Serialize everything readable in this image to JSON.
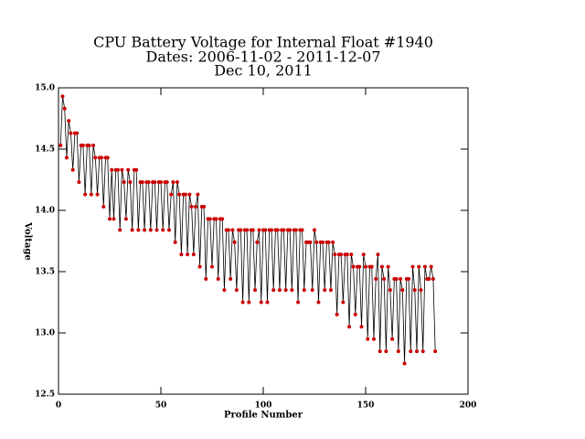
{
  "chart_data": {
    "type": "line",
    "title": [
      "CPU Battery Voltage for Internal Float #1940",
      "Dates:  2006-11-02 -  2011-12-07",
      "Dec 10, 2011"
    ],
    "xlabel": "Profile Number",
    "ylabel": "Voltage",
    "xlim": [
      0,
      200
    ],
    "xticks": [
      0,
      50,
      100,
      150,
      200
    ],
    "ylim": [
      12.5,
      15.0
    ],
    "yticks": [
      {
        "value": 12.5,
        "label": "12.5"
      },
      {
        "value": 13.0,
        "label": "13.0"
      },
      {
        "value": 13.5,
        "label": "13.5"
      },
      {
        "value": 14.0,
        "label": "14.0"
      },
      {
        "value": 14.5,
        "label": "14.5"
      },
      {
        "value": 15.0,
        "label": "15.0"
      }
    ],
    "line_color": "#000000",
    "marker_color": "#cc0000",
    "x": [
      1,
      2,
      3,
      4,
      5,
      6,
      7,
      8,
      9,
      10,
      11,
      12,
      13,
      14,
      15,
      16,
      17,
      18,
      19,
      20,
      21,
      22,
      23,
      24,
      25,
      26,
      27,
      28,
      29,
      30,
      31,
      32,
      33,
      34,
      35,
      36,
      37,
      38,
      39,
      40,
      41,
      42,
      43,
      44,
      45,
      46,
      47,
      48,
      49,
      50,
      51,
      52,
      53,
      54,
      55,
      56,
      57,
      58,
      59,
      60,
      61,
      62,
      63,
      64,
      65,
      66,
      67,
      68,
      69,
      70,
      71,
      72,
      73,
      74,
      75,
      76,
      77,
      78,
      79,
      80,
      81,
      82,
      83,
      84,
      85,
      86,
      87,
      88,
      89,
      90,
      91,
      92,
      93,
      94,
      95,
      96,
      97,
      98,
      99,
      100,
      101,
      102,
      103,
      104,
      105,
      106,
      107,
      108,
      109,
      110,
      111,
      112,
      113,
      114,
      115,
      116,
      117,
      118,
      119,
      120,
      121,
      122,
      123,
      124,
      125,
      126,
      127,
      128,
      129,
      130,
      131,
      132,
      133,
      134,
      135,
      136,
      137,
      138,
      139,
      140,
      141,
      142,
      143,
      144,
      145,
      146,
      147,
      148,
      149,
      150,
      151,
      152,
      153,
      154,
      155,
      156,
      157,
      158,
      159,
      160,
      161,
      162,
      163,
      164,
      165,
      166,
      167,
      168,
      169,
      170,
      171,
      172,
      173,
      174,
      175,
      176,
      177,
      178,
      179,
      180,
      181,
      182,
      183,
      184
    ],
    "values": [
      14.53,
      14.93,
      14.83,
      14.43,
      14.73,
      14.63,
      14.33,
      14.63,
      14.63,
      14.23,
      14.53,
      14.53,
      14.13,
      14.53,
      14.53,
      14.13,
      14.53,
      14.43,
      14.13,
      14.43,
      14.43,
      14.03,
      14.43,
      14.43,
      13.93,
      14.33,
      13.93,
      14.33,
      14.33,
      13.84,
      14.33,
      14.23,
      13.93,
      14.33,
      14.23,
      13.84,
      14.33,
      14.33,
      13.84,
      14.23,
      14.23,
      13.84,
      14.23,
      14.23,
      13.84,
      14.23,
      14.23,
      13.84,
      14.23,
      14.23,
      13.84,
      14.23,
      14.23,
      13.84,
      14.13,
      14.23,
      13.74,
      14.23,
      14.13,
      13.64,
      14.13,
      14.13,
      13.64,
      14.13,
      14.03,
      13.64,
      14.03,
      14.13,
      13.54,
      14.03,
      14.03,
      13.44,
      13.93,
      13.93,
      13.54,
      13.93,
      13.93,
      13.44,
      13.93,
      13.93,
      13.35,
      13.84,
      13.84,
      13.44,
      13.84,
      13.74,
      13.35,
      13.84,
      13.84,
      13.25,
      13.84,
      13.84,
      13.25,
      13.84,
      13.84,
      13.35,
      13.74,
      13.84,
      13.25,
      13.84,
      13.84,
      13.25,
      13.84,
      13.84,
      13.35,
      13.84,
      13.84,
      13.35,
      13.84,
      13.84,
      13.35,
      13.84,
      13.84,
      13.35,
      13.84,
      13.84,
      13.25,
      13.84,
      13.84,
      13.35,
      13.74,
      13.74,
      13.74,
      13.35,
      13.84,
      13.74,
      13.25,
      13.74,
      13.74,
      13.35,
      13.74,
      13.74,
      13.35,
      13.74,
      13.64,
      13.15,
      13.64,
      13.64,
      13.25,
      13.64,
      13.64,
      13.05,
      13.64,
      13.54,
      13.15,
      13.54,
      13.54,
      13.05,
      13.64,
      13.54,
      12.95,
      13.54,
      13.54,
      12.95,
      13.44,
      13.64,
      12.85,
      13.54,
      13.44,
      12.85,
      13.54,
      13.35,
      12.95,
      13.44,
      13.44,
      12.85,
      13.44,
      13.35,
      12.75,
      13.44,
      13.44,
      12.85,
      13.54,
      13.35,
      12.85,
      13.54,
      13.35,
      12.85,
      13.54,
      13.44,
      13.44,
      13.54,
      13.44,
      12.85
    ]
  }
}
